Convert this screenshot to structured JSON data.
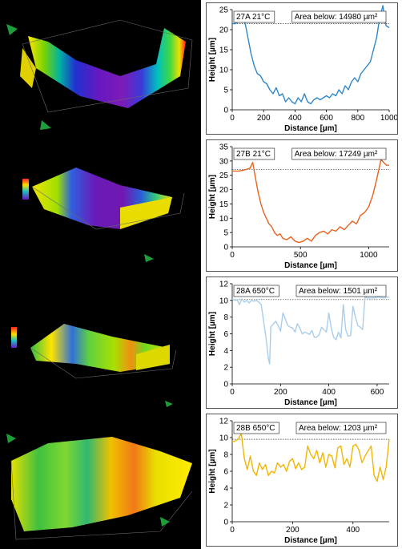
{
  "figure": {
    "panels": [
      {
        "id": "27A",
        "label": "27A 21°C",
        "area": "Area below: 14980 µm²",
        "color": "#2e86c8"
      },
      {
        "id": "27B",
        "label": "27B 21°C",
        "area": "Area below: 17249 µm²",
        "color": "#e8621e"
      },
      {
        "id": "28A",
        "label": "28A 650°C",
        "area": "Area below: 1501 µm²",
        "color": "#a9cdea"
      },
      {
        "id": "28B",
        "label": "28B 650°C",
        "area": "Area below: 1203 µm²",
        "color": "#f2b500"
      }
    ]
  },
  "chart_data": [
    {
      "type": "line",
      "title": "27A 21°C",
      "annotation": "Area below: 14980 µm²",
      "xlabel": "Distance [µm]",
      "ylabel": "Height [µm]",
      "xlim": [
        0,
        1000
      ],
      "ylim": [
        0,
        25
      ],
      "xticks": [
        0,
        200,
        400,
        600,
        800,
        1000
      ],
      "yticks": [
        0,
        5,
        10,
        15,
        20,
        25
      ],
      "reference_line": 21.5,
      "color": "#2e86c8",
      "x": [
        0,
        20,
        40,
        60,
        70,
        80,
        100,
        120,
        140,
        160,
        180,
        200,
        220,
        240,
        260,
        280,
        300,
        320,
        340,
        360,
        380,
        400,
        420,
        440,
        460,
        480,
        500,
        520,
        540,
        560,
        580,
        600,
        620,
        640,
        660,
        680,
        700,
        720,
        740,
        760,
        780,
        800,
        820,
        840,
        860,
        880,
        900,
        920,
        940,
        960,
        970,
        980,
        1000
      ],
      "y": [
        21.5,
        21.5,
        22,
        23,
        24,
        22,
        18,
        14,
        11,
        9,
        8.5,
        7,
        6.5,
        5,
        4,
        5.5,
        3.5,
        4,
        2,
        3,
        2,
        1.5,
        3,
        2,
        4,
        2,
        1.5,
        2.5,
        3,
        2.5,
        3,
        3.5,
        3,
        4,
        3.5,
        5,
        4,
        6,
        5,
        7,
        8,
        7,
        9,
        10,
        11,
        12,
        15,
        18,
        23,
        26,
        23,
        21,
        20.5
      ]
    },
    {
      "type": "line",
      "title": "27B 21°C",
      "annotation": "Area below: 17249 µm²",
      "xlabel": "Distance [µm]",
      "ylabel": "Height [µm]",
      "xlim": [
        0,
        1150
      ],
      "ylim": [
        0,
        35
      ],
      "xticks": [
        0,
        500,
        1000
      ],
      "yticks": [
        0,
        5,
        10,
        15,
        20,
        25,
        30,
        35
      ],
      "reference_line": 27,
      "color": "#e8621e",
      "x": [
        0,
        50,
        100,
        130,
        150,
        170,
        190,
        210,
        230,
        250,
        270,
        290,
        310,
        330,
        350,
        370,
        400,
        430,
        460,
        490,
        520,
        550,
        580,
        610,
        640,
        670,
        700,
        730,
        760,
        790,
        820,
        850,
        880,
        910,
        940,
        970,
        1000,
        1030,
        1060,
        1090,
        1110,
        1130,
        1150
      ],
      "y": [
        26.5,
        26.5,
        27,
        27.5,
        29.5,
        24,
        19,
        15,
        12,
        10,
        8,
        7,
        5,
        4,
        4.5,
        3,
        2.5,
        3.5,
        2,
        1.5,
        2,
        3,
        2,
        4,
        5,
        5.5,
        4.5,
        6,
        5.5,
        7,
        6,
        7.5,
        9,
        8,
        11,
        12,
        14,
        18,
        24,
        30.5,
        29.5,
        28.5,
        28.5
      ]
    },
    {
      "type": "line",
      "title": "28A 650°C",
      "annotation": "Area below: 1501 µm²",
      "xlabel": "Distance [µm]",
      "ylabel": "Height [µm]",
      "xlim": [
        0,
        650
      ],
      "ylim": [
        0,
        12
      ],
      "xticks": [
        0,
        200,
        400,
        600
      ],
      "yticks": [
        0,
        2,
        4,
        6,
        8,
        10,
        12
      ],
      "reference_line": 10.1,
      "color": "#a9cdea",
      "x": [
        0,
        10,
        20,
        30,
        40,
        50,
        60,
        70,
        80,
        90,
        100,
        110,
        120,
        130,
        140,
        150,
        155,
        160,
        170,
        180,
        190,
        200,
        210,
        220,
        230,
        240,
        250,
        260,
        270,
        280,
        290,
        300,
        310,
        320,
        330,
        340,
        350,
        360,
        370,
        380,
        390,
        400,
        410,
        420,
        430,
        440,
        450,
        460,
        470,
        480,
        490,
        500,
        510,
        520,
        530,
        540,
        550,
        560,
        570,
        580,
        590,
        600,
        610,
        620,
        630,
        640,
        650
      ],
      "y": [
        10.2,
        10,
        10.1,
        9.5,
        10.2,
        9.8,
        10,
        9.7,
        10,
        9.9,
        10,
        9.8,
        9.5,
        7.5,
        5.5,
        3,
        2.4,
        6.8,
        7.2,
        7.5,
        7,
        6.3,
        8.5,
        7.8,
        7,
        6.8,
        6.7,
        6.2,
        7.2,
        6.7,
        6,
        6.2,
        6.1,
        5.9,
        6.4,
        5.6,
        5.6,
        5.9,
        6.8,
        6.5,
        6.2,
        8.5,
        6.7,
        5.6,
        5.3,
        6.2,
        5.5,
        9.5,
        6.5,
        5.7,
        5.8,
        9.3,
        8,
        7,
        6.8,
        6.5,
        10.4,
        10.3,
        10.3,
        10.3,
        10.3,
        10.4,
        10.4,
        10.3,
        10.3,
        10.4,
        10.4
      ]
    },
    {
      "type": "line",
      "title": "28B 650°C",
      "annotation": "Area below: 1203 µm²",
      "xlabel": "Distance [µm]",
      "ylabel": "Height [µm]",
      "xlim": [
        0,
        520
      ],
      "ylim": [
        0,
        12
      ],
      "xticks": [
        0,
        200,
        400
      ],
      "yticks": [
        0,
        2,
        4,
        6,
        8,
        10,
        12
      ],
      "reference_line": 9.8,
      "color": "#f2b500",
      "x": [
        0,
        10,
        20,
        30,
        40,
        50,
        60,
        70,
        80,
        90,
        100,
        110,
        120,
        130,
        140,
        150,
        160,
        170,
        180,
        190,
        200,
        210,
        220,
        230,
        240,
        250,
        260,
        270,
        280,
        290,
        300,
        310,
        320,
        330,
        340,
        350,
        360,
        370,
        380,
        390,
        400,
        410,
        420,
        430,
        440,
        450,
        460,
        470,
        480,
        490,
        500,
        510,
        520
      ],
      "y": [
        9.5,
        9.6,
        9.8,
        10.5,
        7.5,
        6.2,
        7.8,
        6,
        5.5,
        7,
        6.2,
        6.8,
        5.5,
        6,
        5.8,
        7,
        6.5,
        6.8,
        6,
        7.2,
        7.5,
        6.3,
        7,
        6.2,
        6.5,
        9,
        8,
        7.5,
        8.5,
        7,
        8.2,
        6.5,
        8,
        7.8,
        6.4,
        8.8,
        9,
        6.8,
        7.5,
        6.5,
        9,
        9.2,
        8.5,
        7,
        7.8,
        8.4,
        9,
        5.5,
        4.8,
        6.5,
        5,
        6.5,
        9.8
      ]
    }
  ]
}
